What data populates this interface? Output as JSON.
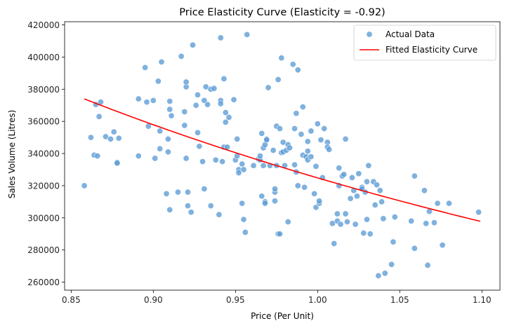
{
  "chart_data": {
    "type": "scatter",
    "title": "Price Elasticity Curve (Elasticity = -0.92)",
    "xlabel": "Price (Per Unit)",
    "ylabel": "Sales Volume (Litres)",
    "xlim": [
      0.846,
      1.111
    ],
    "ylim": [
      255000,
      422000
    ],
    "x_ticks": [
      0.85,
      0.9,
      0.95,
      1.0,
      1.05,
      1.1
    ],
    "x_tick_labels": [
      "0.85",
      "0.90",
      "0.95",
      "1.00",
      "1.05",
      "1.10"
    ],
    "y_ticks": [
      260000,
      280000,
      300000,
      320000,
      340000,
      360000,
      380000,
      400000,
      420000
    ],
    "y_tick_labels": [
      "260000",
      "280000",
      "300000",
      "320000",
      "340000",
      "360000",
      "380000",
      "400000",
      "420000"
    ],
    "grid": false,
    "legend_position": "top-right",
    "series": [
      {
        "name": "Actual Data",
        "kind": "scatter",
        "color": "#5b9bd5",
        "points": [
          [
            0.858,
            320000
          ],
          [
            0.862,
            350000
          ],
          [
            0.864,
            339000
          ],
          [
            0.865,
            370500
          ],
          [
            0.866,
            338500
          ],
          [
            0.867,
            363000
          ],
          [
            0.868,
            372000
          ],
          [
            0.871,
            350500
          ],
          [
            0.874,
            349000
          ],
          [
            0.876,
            353500
          ],
          [
            0.878,
            334500
          ],
          [
            0.878,
            334000
          ],
          [
            0.879,
            349500
          ],
          [
            0.891,
            338500
          ],
          [
            0.891,
            374000
          ],
          [
            0.895,
            393500
          ],
          [
            0.896,
            372000
          ],
          [
            0.897,
            357000
          ],
          [
            0.9,
            373000
          ],
          [
            0.901,
            337000
          ],
          [
            0.903,
            385000
          ],
          [
            0.904,
            343000
          ],
          [
            0.904,
            354000
          ],
          [
            0.905,
            397000
          ],
          [
            0.908,
            315000
          ],
          [
            0.909,
            341000
          ],
          [
            0.909,
            349000
          ],
          [
            0.91,
            372500
          ],
          [
            0.91,
            367500
          ],
          [
            0.91,
            305000
          ],
          [
            0.911,
            363500
          ],
          [
            0.915,
            316000
          ],
          [
            0.917,
            400500
          ],
          [
            0.919,
            357500
          ],
          [
            0.919,
            366000
          ],
          [
            0.92,
            381500
          ],
          [
            0.92,
            384500
          ],
          [
            0.92,
            337000
          ],
          [
            0.921,
            307500
          ],
          [
            0.921,
            316000
          ],
          [
            0.923,
            303500
          ],
          [
            0.924,
            407500
          ],
          [
            0.926,
            370000
          ],
          [
            0.927,
            376500
          ],
          [
            0.927,
            353000
          ],
          [
            0.928,
            344500
          ],
          [
            0.93,
            335000
          ],
          [
            0.931,
            373000
          ],
          [
            0.931,
            318000
          ],
          [
            0.932,
            381500
          ],
          [
            0.933,
            370500
          ],
          [
            0.935,
            380000
          ],
          [
            0.935,
            307500
          ],
          [
            0.937,
            380500
          ],
          [
            0.938,
            336000
          ],
          [
            0.94,
            302000
          ],
          [
            0.941,
            373000
          ],
          [
            0.941,
            371000
          ],
          [
            0.941,
            412000
          ],
          [
            0.942,
            335000
          ],
          [
            0.943,
            386500
          ],
          [
            0.943,
            344000
          ],
          [
            0.944,
            365500
          ],
          [
            0.944,
            359500
          ],
          [
            0.945,
            344000
          ],
          [
            0.946,
            362500
          ],
          [
            0.949,
            373500
          ],
          [
            0.95,
            336000
          ],
          [
            0.951,
            349000
          ],
          [
            0.951,
            338500
          ],
          [
            0.952,
            330000
          ],
          [
            0.952,
            328000
          ],
          [
            0.954,
            309000
          ],
          [
            0.954,
            333500
          ],
          [
            0.955,
            299000
          ],
          [
            0.955,
            330000
          ],
          [
            0.956,
            291000
          ],
          [
            0.957,
            414000
          ],
          [
            0.961,
            332500
          ],
          [
            0.964,
            336500
          ],
          [
            0.965,
            336000
          ],
          [
            0.965,
            338500
          ],
          [
            0.966,
            352500
          ],
          [
            0.966,
            313500
          ],
          [
            0.967,
            332500
          ],
          [
            0.967,
            343500
          ],
          [
            0.968,
            345500
          ],
          [
            0.968,
            310000
          ],
          [
            0.968,
            309000
          ],
          [
            0.969,
            349000
          ],
          [
            0.969,
            348500
          ],
          [
            0.97,
            381000
          ],
          [
            0.971,
            332500
          ],
          [
            0.973,
            342000
          ],
          [
            0.974,
            316000
          ],
          [
            0.974,
            318000
          ],
          [
            0.974,
            310500
          ],
          [
            0.975,
            332500
          ],
          [
            0.975,
            357000
          ],
          [
            0.976,
            386000
          ],
          [
            0.976,
            290000
          ],
          [
            0.977,
            355500
          ],
          [
            0.977,
            290000
          ],
          [
            0.978,
            399500
          ],
          [
            0.978,
            340500
          ],
          [
            0.979,
            347000
          ],
          [
            0.979,
            341000
          ],
          [
            0.98,
            332500
          ],
          [
            0.981,
            342000
          ],
          [
            0.982,
            345500
          ],
          [
            0.982,
            297500
          ],
          [
            0.983,
            343500
          ],
          [
            0.985,
            395500
          ],
          [
            0.986,
            355500
          ],
          [
            0.986,
            333000
          ],
          [
            0.987,
            328500
          ],
          [
            0.987,
            365000
          ],
          [
            0.988,
            320000
          ],
          [
            0.988,
            392000
          ],
          [
            0.99,
            352000
          ],
          [
            0.991,
            369000
          ],
          [
            0.991,
            339000
          ],
          [
            0.992,
            319000
          ],
          [
            0.993,
            338000
          ],
          [
            0.994,
            336000
          ],
          [
            0.994,
            341500
          ],
          [
            0.994,
            347500
          ],
          [
            0.996,
            354000
          ],
          [
            0.996,
            338000
          ],
          [
            0.998,
            315000
          ],
          [
            0.999,
            332000
          ],
          [
            0.999,
            306500
          ],
          [
            1.0,
            358500
          ],
          [
            1.001,
            309000
          ],
          [
            1.001,
            310500
          ],
          [
            1.002,
            348500
          ],
          [
            1.003,
            325000
          ],
          [
            1.004,
            355500
          ],
          [
            1.006,
            347000
          ],
          [
            1.006,
            344000
          ],
          [
            1.007,
            342500
          ],
          [
            1.009,
            296500
          ],
          [
            1.01,
            284000
          ],
          [
            1.012,
            298000
          ],
          [
            1.012,
            302500
          ],
          [
            1.013,
            320000
          ],
          [
            1.013,
            331000
          ],
          [
            1.014,
            296000
          ],
          [
            1.015,
            326000
          ],
          [
            1.016,
            327000
          ],
          [
            1.017,
            349000
          ],
          [
            1.017,
            302500
          ],
          [
            1.018,
            297500
          ],
          [
            1.02,
            312000
          ],
          [
            1.021,
            325000
          ],
          [
            1.022,
            317000
          ],
          [
            1.023,
            296000
          ],
          [
            1.024,
            313500
          ],
          [
            1.025,
            327500
          ],
          [
            1.027,
            319000
          ],
          [
            1.027,
            318000
          ],
          [
            1.028,
            290500
          ],
          [
            1.029,
            316000
          ],
          [
            1.03,
            322500
          ],
          [
            1.03,
            299000
          ],
          [
            1.031,
            332500
          ],
          [
            1.032,
            290000
          ],
          [
            1.034,
            322500
          ],
          [
            1.035,
            308000
          ],
          [
            1.036,
            320500
          ],
          [
            1.037,
            264000
          ],
          [
            1.038,
            317000
          ],
          [
            1.039,
            310000
          ],
          [
            1.04,
            299500
          ],
          [
            1.041,
            265500
          ],
          [
            1.045,
            271000
          ],
          [
            1.046,
            285000
          ],
          [
            1.047,
            300500
          ],
          [
            1.057,
            298000
          ],
          [
            1.059,
            326000
          ],
          [
            1.059,
            281000
          ],
          [
            1.065,
            317000
          ],
          [
            1.066,
            296500
          ],
          [
            1.067,
            270500
          ],
          [
            1.068,
            304000
          ],
          [
            1.071,
            297000
          ],
          [
            1.073,
            309000
          ],
          [
            1.076,
            283000
          ],
          [
            1.08,
            309000
          ],
          [
            1.098,
            303500
          ]
        ]
      },
      {
        "name": "Fitted Elasticity Curve",
        "kind": "line",
        "color": "#ff0000",
        "elasticity": -0.92,
        "x_start": 0.858,
        "x_end": 1.099,
        "y_at_x_start": 374000,
        "y_at_x_end": 298000
      }
    ]
  }
}
